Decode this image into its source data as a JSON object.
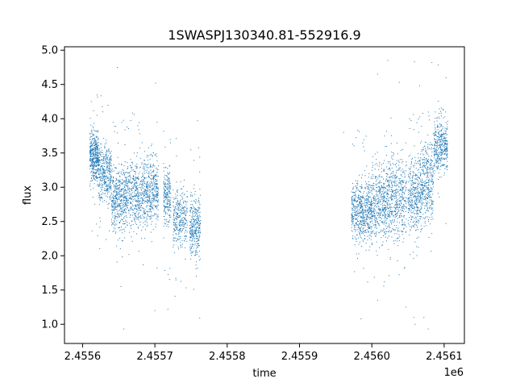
{
  "chart_data": {
    "type": "scatter",
    "title": "1SWASPJ130340.81-552916.9",
    "xlabel": "time",
    "ylabel": "flux",
    "x_offset_label": "1e6",
    "xlim": [
      2.455575,
      2.456128
    ],
    "ylim": [
      0.72,
      5.05
    ],
    "x_ticks": [
      2.4556,
      2.4557,
      2.4558,
      2.4559,
      2.456,
      2.4561
    ],
    "x_tick_labels": [
      "2.4556",
      "2.4557",
      "2.4558",
      "2.4559",
      "2.4560",
      "2.4561"
    ],
    "y_ticks": [
      1.0,
      1.5,
      2.0,
      2.5,
      3.0,
      3.5,
      4.0,
      4.5,
      5.0
    ],
    "y_tick_labels": [
      "1.0",
      "1.5",
      "2.0",
      "2.5",
      "3.0",
      "3.5",
      "4.0",
      "4.5",
      "5.0"
    ],
    "grid": false,
    "marker_color": "#1f77b4",
    "series": [
      {
        "segments": [
          {
            "x_start": 2.45561,
            "x_end": 2.455622,
            "center": 3.45,
            "spread": 0.18,
            "count": 420
          },
          {
            "x_start": 2.455622,
            "x_end": 2.45564,
            "center": 3.2,
            "spread": 0.22,
            "count": 380
          },
          {
            "x_start": 2.45564,
            "x_end": 2.45566,
            "center": 2.85,
            "spread": 0.25,
            "count": 420
          },
          {
            "x_start": 2.45566,
            "x_end": 2.45569,
            "center": 2.9,
            "spread": 0.25,
            "count": 560
          },
          {
            "x_start": 2.45569,
            "x_end": 2.455705,
            "center": 2.95,
            "spread": 0.25,
            "count": 300
          },
          {
            "x_start": 2.455712,
            "x_end": 2.455722,
            "center": 2.85,
            "spread": 0.2,
            "count": 220
          },
          {
            "x_start": 2.455725,
            "x_end": 2.455745,
            "center": 2.55,
            "spread": 0.2,
            "count": 300
          },
          {
            "x_start": 2.455748,
            "x_end": 2.455763,
            "center": 2.45,
            "spread": 0.25,
            "count": 320
          },
          {
            "x_start": 2.455972,
            "x_end": 2.456,
            "center": 2.65,
            "spread": 0.22,
            "count": 600
          },
          {
            "x_start": 2.456,
            "x_end": 2.45602,
            "center": 2.75,
            "spread": 0.28,
            "count": 380
          },
          {
            "x_start": 2.45602,
            "x_end": 2.456048,
            "center": 2.85,
            "spread": 0.3,
            "count": 520
          },
          {
            "x_start": 2.45605,
            "x_end": 2.45607,
            "center": 2.9,
            "spread": 0.3,
            "count": 420
          },
          {
            "x_start": 2.45607,
            "x_end": 2.456085,
            "center": 3.1,
            "spread": 0.3,
            "count": 320
          },
          {
            "x_start": 2.456086,
            "x_end": 2.456105,
            "center": 3.6,
            "spread": 0.2,
            "count": 380
          }
        ],
        "outliers": [
          [
            2.455612,
            4.25
          ],
          [
            2.45562,
            4.05
          ],
          [
            2.455628,
            4.1
          ],
          [
            2.455648,
            4.75
          ],
          [
            2.455701,
            4.52
          ],
          [
            2.455653,
            1.55
          ],
          [
            2.455657,
            0.93
          ],
          [
            2.4557,
            1.2
          ],
          [
            2.455718,
            1.22
          ],
          [
            2.455759,
            3.97
          ],
          [
            2.455762,
            1.09
          ],
          [
            2.455961,
            3.8
          ],
          [
            2.455985,
            1.08
          ],
          [
            2.456008,
            4.65
          ],
          [
            2.456038,
            4.53
          ],
          [
            2.456059,
            4.83
          ],
          [
            2.456066,
            4.48
          ],
          [
            2.456083,
            4.82
          ],
          [
            2.456072,
            1.1
          ],
          [
            2.456058,
            1.1
          ],
          [
            2.456008,
            1.35
          ],
          [
            2.456022,
            4.85
          ],
          [
            2.45606,
            1.0
          ],
          [
            2.456078,
            0.93
          ],
          [
            2.456047,
            1.25
          ]
        ]
      }
    ]
  }
}
